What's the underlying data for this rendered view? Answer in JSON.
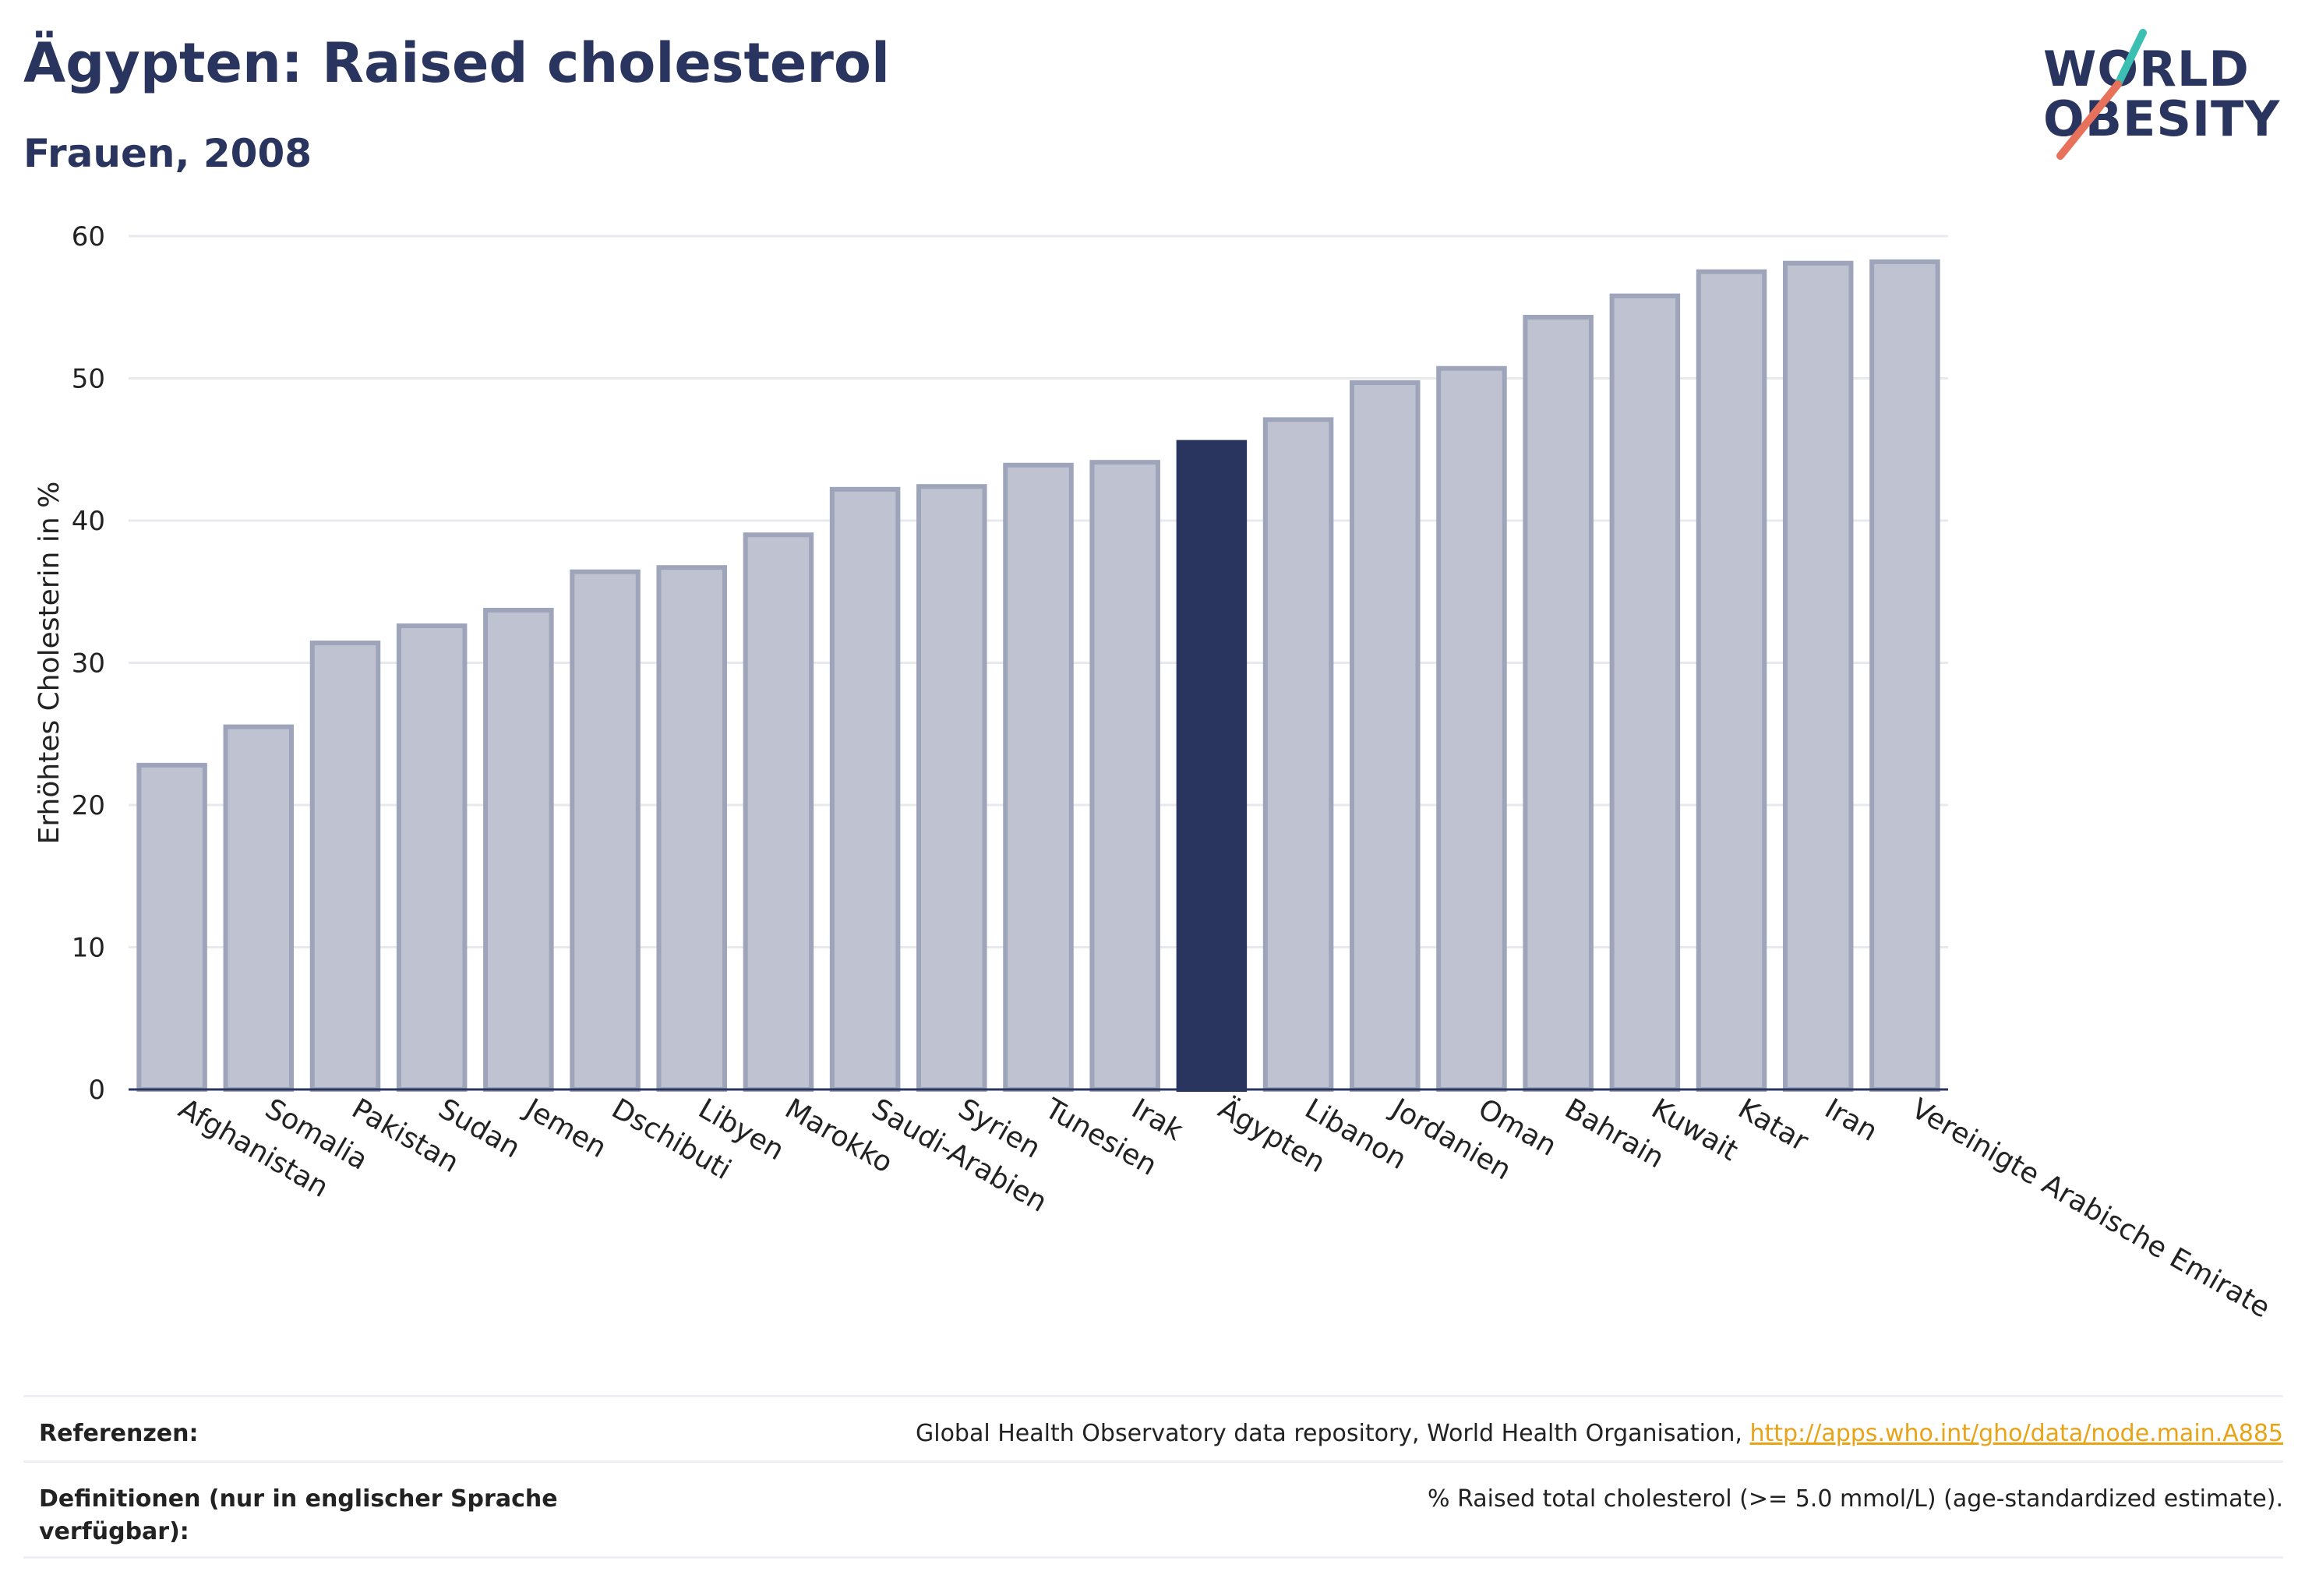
{
  "header": {
    "title": "Ägypten: Raised cholesterol",
    "subtitle": "Frauen, 2008"
  },
  "logo": {
    "line1": "WORLD",
    "line2": "OBESITY",
    "colors": {
      "text": "#2a355f",
      "teal": "#3bbfb2",
      "coral": "#e8715b"
    }
  },
  "colors": {
    "bar": "#bfc3d1",
    "bar_stroke": "#9ea4b9",
    "highlight": "#2a355f",
    "grid": "#e8e9ef",
    "axis": "#2a355f"
  },
  "chart_data": {
    "type": "bar",
    "ylabel": "Erhöhtes Cholesterin in %",
    "ylim": [
      0,
      60
    ],
    "yticks": [
      0,
      10,
      20,
      30,
      40,
      50,
      60
    ],
    "grid": true,
    "highlight": "Ägypten",
    "categories": [
      "Afghanistan",
      "Somalia",
      "Pakistan",
      "Sudan",
      "Jemen",
      "Dschibuti",
      "Libyen",
      "Marokko",
      "Saudi-Arabien",
      "Syrien",
      "Tunesien",
      "Irak",
      "Ägypten",
      "Libanon",
      "Jordanien",
      "Oman",
      "Bahrain",
      "Kuwait",
      "Katar",
      "Iran",
      "Vereinigte Arabische Emirate"
    ],
    "values": [
      22.8,
      25.5,
      31.4,
      32.6,
      33.7,
      36.4,
      36.7,
      39.0,
      42.2,
      42.4,
      43.9,
      44.1,
      45.5,
      47.1,
      49.7,
      50.7,
      54.3,
      55.8,
      57.5,
      58.1,
      58.2
    ]
  },
  "footer": {
    "references_label": "Referenzen:",
    "references_text": "Global Health Observatory data repository, World Health Organisation,",
    "references_link": "http://apps.who.int/gho/data/node.main.A885",
    "definitions_label": "Definitionen (nur in englischer Sprache verfügbar):",
    "definitions_text": "% Raised total cholesterol (>= 5.0 mmol/L) (age-standardized estimate)."
  }
}
